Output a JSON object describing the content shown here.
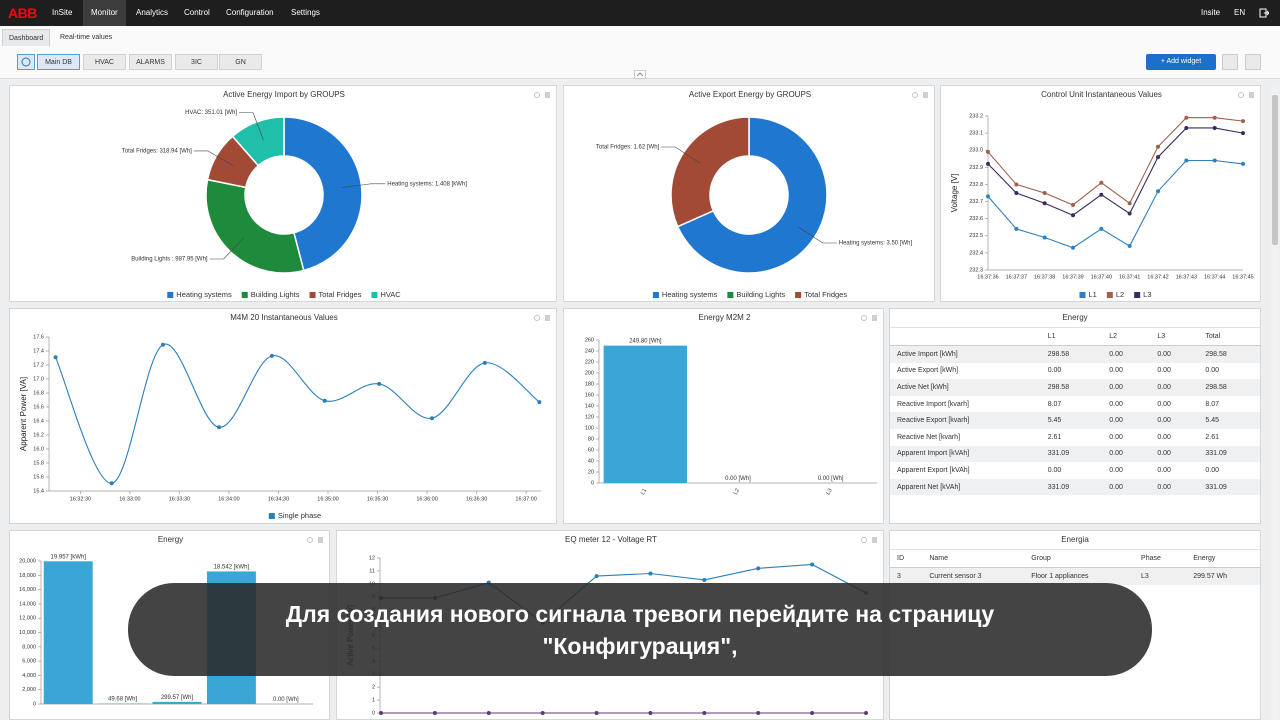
{
  "nav": {
    "logo": "ABB",
    "app": "InSite",
    "menu": [
      "Monitor",
      "Analytics",
      "Control",
      "Configuration",
      "Settings"
    ],
    "user": "Insite",
    "lang": "EN"
  },
  "tabs": [
    "Dashboard",
    "Real-time values"
  ],
  "dashboards": [
    "Main DB",
    "HVAC",
    "ALARMS",
    "3IC",
    "GN"
  ],
  "add_widget": "Add widget",
  "chart_data": [
    {
      "type": "pie",
      "title": "Active Energy Import by GROUPS",
      "categories": [
        "Heating systems",
        "Building Lights",
        "Total Fridges",
        "HVAC"
      ],
      "values": [
        1408,
        987.95,
        318.94,
        351.01
      ],
      "value_labels": [
        "Heating systems: 1.408 [kWh]",
        "Building Lights : 987.95 [Wh]",
        "Total Fridges: 318.94 [Wh]",
        "HVAC: 351.01 [Wh]"
      ],
      "colors": [
        "#1f77d0",
        "#1e8a3c",
        "#a34a36",
        "#1fbfa9"
      ]
    },
    {
      "type": "pie",
      "title": "Active Export Energy by GROUPS",
      "categories": [
        "Heating systems",
        "Building Lights",
        "Total Fridges"
      ],
      "values": [
        3.5,
        0,
        1.62
      ],
      "value_labels": [
        "Heating systems: 3.50 [Wh]",
        null,
        "Total Fridges: 1.62 [Wh]"
      ],
      "colors": [
        "#1f77d0",
        "#1e8a3c",
        "#a34a36"
      ]
    },
    {
      "type": "line",
      "title": "Control Unit Instantaneous Values",
      "y_label": "Voltage [V]",
      "categories": [
        "16:37:36",
        "16:37:37",
        "16:37:38",
        "16:37:39",
        "16:37:40",
        "16:37:41",
        "16:37:42",
        "16:37:43",
        "16:37:44",
        "16:37:45"
      ],
      "ylim": [
        232.3,
        233.2
      ],
      "yticks": [
        232.3,
        232.4,
        232.5,
        232.6,
        232.7,
        232.8,
        232.9,
        {
          "value": 233,
          "label": "233.0"
        },
        233.1,
        233.2
      ],
      "series": [
        {
          "name": "L1",
          "color": "#2f7fc1",
          "values": [
            232.73,
            232.54,
            232.49,
            232.43,
            232.54,
            232.44,
            232.76,
            232.94,
            232.94,
            232.92
          ]
        },
        {
          "name": "L2",
          "color": "#a0604a",
          "values": [
            232.99,
            232.8,
            232.75,
            232.68,
            232.81,
            232.69,
            233.02,
            233.19,
            233.19,
            233.17
          ]
        },
        {
          "name": "L3",
          "color": "#3b2a5e",
          "values": [
            232.92,
            232.75,
            232.69,
            232.62,
            232.74,
            232.63,
            232.96,
            233.13,
            233.13,
            233.1
          ]
        }
      ]
    },
    {
      "type": "line",
      "smooth": true,
      "title": "M4M 20 Instantaneous Values",
      "y_label": "Apparent Power [VA]",
      "x": [
        "16:32:15",
        "16:32:49",
        "16:33:20",
        "16:33:54",
        "16:34:26",
        "16:34:58",
        "16:35:31",
        "16:36:03",
        "16:36:35",
        "16:37:08"
      ],
      "xlim": [
        "16:32:11",
        "16:37:09"
      ],
      "xticks": [
        "16:32:30",
        "16:33:00",
        "16:33:30",
        "16:34:00",
        "16:34:30",
        "16:35:00",
        "16:35:30",
        "16:36:00",
        "16:36:30",
        "16:37:00"
      ],
      "ylim": [
        15.4,
        17.6
      ],
      "yticks": [
        15.4,
        15.6,
        15.8,
        {
          "value": 16,
          "label": "16.0"
        },
        16.2,
        16.4,
        16.6,
        16.8,
        {
          "value": 17,
          "label": "17.0"
        },
        17.2,
        17.4,
        17.6
      ],
      "series": [
        {
          "name": "Single phase",
          "color": "#2a7fb8",
          "values": [
            17.31,
            15.51,
            17.49,
            16.31,
            17.33,
            16.69,
            16.93,
            16.44,
            17.23,
            16.67
          ]
        }
      ]
    },
    {
      "type": "bar",
      "title": "Energy M2M 2",
      "categories": [
        "L1",
        "L2",
        "L3"
      ],
      "values": [
        249.8,
        0,
        0
      ],
      "value_labels": [
        "249.80 [Wh]",
        "0.00 [Wh]",
        "0.00 [Wh]"
      ],
      "color": "#3aa6d6",
      "ylim": [
        0,
        260
      ],
      "yticks": [
        0,
        20,
        40,
        60,
        80,
        100,
        120,
        140,
        160,
        180,
        200,
        220,
        240,
        260
      ]
    },
    {
      "type": "bar",
      "title": "Energy",
      "values": [
        19957,
        49.68,
        299.57,
        18542,
        0
      ],
      "value_labels": [
        "19.957 [kWh]",
        "49.68 [Wh]",
        "299.57 [Wh]",
        "18.542 [kWh]",
        "0.00 [Wh]"
      ],
      "color": "#3aa6d6",
      "ylim": [
        0,
        20000
      ],
      "yticks": [
        0,
        {
          "value": 2000,
          "label": "2,000"
        },
        {
          "value": 4000,
          "label": "4,000"
        },
        {
          "value": 6000,
          "label": "6,000"
        },
        {
          "value": 8000,
          "label": "8,000"
        },
        {
          "value": 10000,
          "label": "10,000"
        },
        {
          "value": 12000,
          "label": "12,000"
        },
        {
          "value": 14000,
          "label": "14,000"
        },
        {
          "value": 16000,
          "label": "16,000"
        },
        {
          "value": 18000,
          "label": "18,000"
        },
        {
          "value": 20000,
          "label": "20,000"
        }
      ]
    },
    {
      "type": "line",
      "title": "EQ meter 12 - Voltage RT",
      "y_label": "Active Power [W]",
      "ylim": [
        0,
        12
      ],
      "yticks": [
        0,
        1,
        2,
        3,
        4,
        5,
        6,
        7,
        8,
        9,
        10,
        11,
        12
      ],
      "series": [
        {
          "color": "#2a7fb8",
          "values": [
            8.9,
            8.9,
            10.1,
            7.0,
            10.6,
            10.8,
            10.3,
            11.2,
            11.5,
            9.3
          ]
        },
        {
          "color": "#5b3a7a",
          "values": [
            0,
            0,
            0,
            0,
            0,
            0,
            0,
            0,
            0,
            0
          ]
        }
      ]
    }
  ],
  "tables": [
    {
      "title": "Energy",
      "header": [
        "L1",
        "L2",
        "L3",
        "Total"
      ],
      "rows": [
        [
          "Active Import [kWh]",
          "298.58",
          "0.00",
          "0.00",
          "298.58"
        ],
        [
          "Active Export [kWh]",
          "0.00",
          "0.00",
          "0.00",
          "0.00"
        ],
        [
          "Active Net [kWh]",
          "298.58",
          "0.00",
          "0.00",
          "298.58"
        ],
        [
          "Reactive Import [kvarh]",
          "8.07",
          "0.00",
          "0.00",
          "8.07"
        ],
        [
          "Reactive Export [kvarh]",
          "5.45",
          "0.00",
          "0.00",
          "5.45"
        ],
        [
          "Reactive Net [kvarh]",
          "2.61",
          "0.00",
          "0.00",
          "2.61"
        ],
        [
          "Apparent Import [kVAh]",
          "331.09",
          "0.00",
          "0.00",
          "331.09"
        ],
        [
          "Apparent Export [kVAh]",
          "0.00",
          "0.00",
          "0.00",
          "0.00"
        ],
        [
          "Apparent Net [kVAh]",
          "331.09",
          "0.00",
          "0.00",
          "331.09"
        ]
      ]
    },
    {
      "title": "Energia",
      "header": [
        "ID",
        "Name",
        "Group",
        "Phase",
        "Energy"
      ],
      "rows": [
        [
          "3",
          "Current sensor 3",
          "Floor 1 appliances",
          "L3",
          "299.57 Wh"
        ]
      ]
    }
  ],
  "caption": [
    "Для создания нового сигнала тревоги перейдите на страницу",
    "\"Конфигурация\","
  ]
}
